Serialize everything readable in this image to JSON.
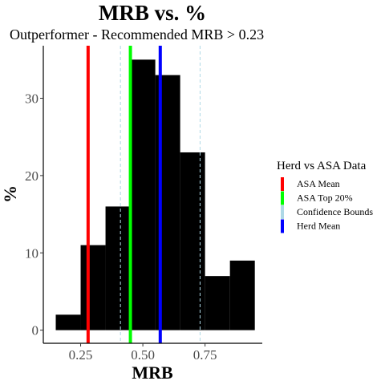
{
  "chart_data": {
    "type": "bar",
    "title": "MRB  vs.  %",
    "subtitle": "Outperformer - Recommended  MRB > 0.23",
    "xlabel": "MRB",
    "ylabel": "%",
    "xlim": [
      0.1,
      0.98
    ],
    "ylim": [
      -1.7,
      36.8
    ],
    "x_ticks": [
      0.25,
      0.5,
      0.75
    ],
    "x_tick_labels": [
      "0.25",
      "0.50",
      "0.75"
    ],
    "y_ticks": [
      0,
      10,
      20,
      30
    ],
    "y_tick_labels": [
      "0",
      "10",
      "20",
      "30"
    ],
    "grid": false,
    "bins": [
      {
        "x0": 0.15,
        "x1": 0.25,
        "value": 2
      },
      {
        "x0": 0.25,
        "x1": 0.35,
        "value": 11
      },
      {
        "x0": 0.35,
        "x1": 0.45,
        "value": 16
      },
      {
        "x0": 0.45,
        "x1": 0.55,
        "value": 35
      },
      {
        "x0": 0.55,
        "x1": 0.65,
        "value": 33
      },
      {
        "x0": 0.65,
        "x1": 0.75,
        "value": 23
      },
      {
        "x0": 0.75,
        "x1": 0.85,
        "value": 7
      },
      {
        "x0": 0.85,
        "x1": 0.95,
        "value": 9
      }
    ],
    "bar_color": "#000000",
    "vlines": [
      {
        "name": "ASA Mean",
        "x": 0.28,
        "color": "#ff0000",
        "style": "solid"
      },
      {
        "name": "ASA Top 20%",
        "x": 0.45,
        "color": "#00ff00",
        "style": "solid"
      },
      {
        "name": "Confidence Bounds",
        "x": 0.41,
        "color": "#add8e6",
        "style": "dashed"
      },
      {
        "name": "Confidence Bounds",
        "x": 0.73,
        "color": "#add8e6",
        "style": "dashed"
      },
      {
        "name": "Herd Mean",
        "x": 0.57,
        "color": "#0000ff",
        "style": "solid"
      }
    ],
    "legend": {
      "title": "Herd vs ASA Data",
      "position": "right",
      "entries": [
        {
          "label": "ASA Mean",
          "color": "#ff0000"
        },
        {
          "label": "ASA Top 20%",
          "color": "#00ff00"
        },
        {
          "label": "Confidence Bounds",
          "color": "#add8e6"
        },
        {
          "label": "Herd Mean",
          "color": "#0000ff"
        }
      ]
    }
  }
}
